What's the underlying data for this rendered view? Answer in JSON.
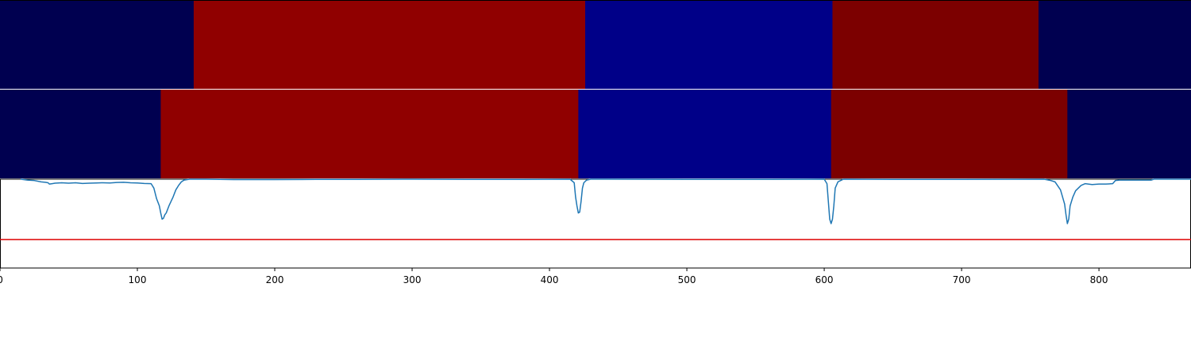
{
  "chart_data": {
    "type": "heatmap",
    "x_range": [
      0,
      867
    ],
    "xticks": [
      0,
      100,
      200,
      300,
      400,
      500,
      600,
      700,
      800
    ],
    "xtick_labels": [
      "0",
      "100",
      "200",
      "300",
      "400",
      "500",
      "600",
      "700",
      "800"
    ],
    "rows": [
      {
        "segments": [
          {
            "start": 0,
            "end": 141,
            "color": "#000050"
          },
          {
            "start": 141,
            "end": 426,
            "color": "#900000"
          },
          {
            "start": 426,
            "end": 606,
            "color": "#000088"
          },
          {
            "start": 606,
            "end": 756,
            "color": "#7c0000"
          },
          {
            "start": 756,
            "end": 867,
            "color": "#000050"
          }
        ]
      },
      {
        "segments": [
          {
            "start": 0,
            "end": 117,
            "color": "#000050"
          },
          {
            "start": 117,
            "end": 421,
            "color": "#900000"
          },
          {
            "start": 421,
            "end": 605,
            "color": "#000088"
          },
          {
            "start": 605,
            "end": 777,
            "color": "#7c0000"
          },
          {
            "start": 777,
            "end": 867,
            "color": "#000050"
          }
        ]
      }
    ],
    "signal": {
      "color": "#1f77b4",
      "ylim": [
        0.0,
        1.0
      ],
      "threshold": 0.32,
      "threshold_color": "#dd0000",
      "points": [
        [
          15,
          1.0
        ],
        [
          20,
          0.99
        ],
        [
          25,
          0.985
        ],
        [
          30,
          0.97
        ],
        [
          33,
          0.965
        ],
        [
          35,
          0.96
        ],
        [
          36,
          0.945
        ],
        [
          38,
          0.95
        ],
        [
          40,
          0.955
        ],
        [
          45,
          0.96
        ],
        [
          50,
          0.955
        ],
        [
          55,
          0.96
        ],
        [
          60,
          0.952
        ],
        [
          65,
          0.955
        ],
        [
          70,
          0.958
        ],
        [
          75,
          0.96
        ],
        [
          80,
          0.958
        ],
        [
          85,
          0.963
        ],
        [
          90,
          0.965
        ],
        [
          95,
          0.96
        ],
        [
          100,
          0.958
        ],
        [
          105,
          0.952
        ],
        [
          110,
          0.95
        ],
        [
          112,
          0.9
        ],
        [
          114,
          0.78
        ],
        [
          116,
          0.7
        ],
        [
          117,
          0.62
        ],
        [
          118,
          0.55
        ],
        [
          119,
          0.56
        ],
        [
          120,
          0.6
        ],
        [
          121,
          0.62
        ],
        [
          123,
          0.7
        ],
        [
          126,
          0.8
        ],
        [
          128,
          0.88
        ],
        [
          130,
          0.93
        ],
        [
          132,
          0.97
        ],
        [
          134,
          0.99
        ],
        [
          138,
          1.0
        ],
        [
          150,
          1.0
        ],
        [
          170,
          0.995
        ],
        [
          200,
          0.995
        ],
        [
          230,
          0.998
        ],
        [
          260,
          0.998
        ],
        [
          300,
          1.0
        ],
        [
          340,
          0.998
        ],
        [
          380,
          0.998
        ],
        [
          415,
          1.0
        ],
        [
          418,
          0.96
        ],
        [
          419,
          0.8
        ],
        [
          420,
          0.7
        ],
        [
          421,
          0.62
        ],
        [
          422,
          0.63
        ],
        [
          423,
          0.75
        ],
        [
          424,
          0.9
        ],
        [
          425,
          0.96
        ],
        [
          427,
          0.99
        ],
        [
          430,
          1.0
        ],
        [
          500,
          0.998
        ],
        [
          560,
          0.998
        ],
        [
          600,
          1.0
        ],
        [
          602,
          0.95
        ],
        [
          603,
          0.75
        ],
        [
          604,
          0.55
        ],
        [
          605,
          0.5
        ],
        [
          606,
          0.55
        ],
        [
          607,
          0.7
        ],
        [
          608,
          0.9
        ],
        [
          610,
          0.97
        ],
        [
          614,
          1.0
        ],
        [
          650,
          0.998
        ],
        [
          700,
          0.998
        ],
        [
          760,
          1.0
        ],
        [
          765,
          0.985
        ],
        [
          768,
          0.97
        ],
        [
          772,
          0.88
        ],
        [
          775,
          0.72
        ],
        [
          776,
          0.6
        ],
        [
          777,
          0.5
        ],
        [
          778,
          0.55
        ],
        [
          779,
          0.7
        ],
        [
          781,
          0.8
        ],
        [
          783,
          0.87
        ],
        [
          785,
          0.9
        ],
        [
          787,
          0.93
        ],
        [
          790,
          0.95
        ],
        [
          795,
          0.94
        ],
        [
          800,
          0.945
        ],
        [
          805,
          0.945
        ],
        [
          810,
          0.95
        ],
        [
          812,
          0.985
        ],
        [
          815,
          0.99
        ],
        [
          825,
          0.99
        ],
        [
          835,
          0.99
        ],
        [
          838,
          0.99
        ],
        [
          840,
          1.0
        ],
        [
          850,
          1.0
        ],
        [
          867,
          1.0
        ]
      ]
    }
  }
}
